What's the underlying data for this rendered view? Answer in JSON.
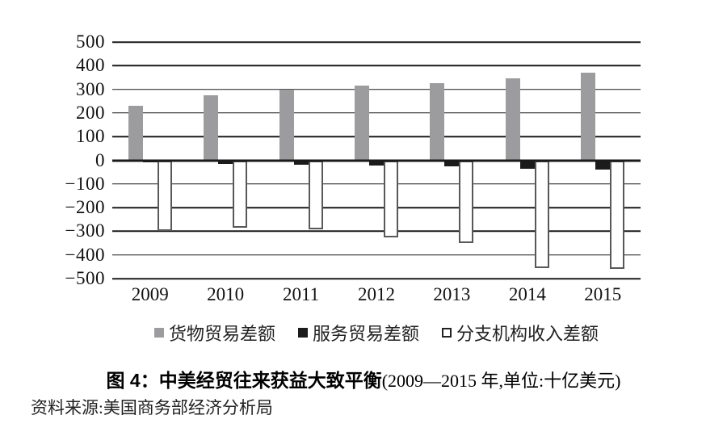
{
  "figure": {
    "caption_label": "图 4：",
    "caption_title": "中美经贸往来获益大致平衡",
    "caption_suffix": "(2009—2015 年,单位:十亿美元)",
    "source": "资料来源:美国商务部经济分析局"
  },
  "colors": {
    "goods_fill": "#9c9c9e",
    "services_fill": "#1b1b1b",
    "branch_fill": "#ffffff",
    "branch_border": "#58585a",
    "grid": "#1a1a1a"
  },
  "chart_data": {
    "type": "bar",
    "title": "图 4：中美经贸往来获益大致平衡(2009—2015 年,单位:十亿美元)",
    "xlabel": "",
    "ylabel": "",
    "unit": "十亿美元",
    "categories": [
      "2009",
      "2010",
      "2011",
      "2012",
      "2013",
      "2014",
      "2015"
    ],
    "series": [
      {
        "name": "货物贸易差额",
        "color_key": "goods",
        "values": [
          230,
          275,
          300,
          315,
          325,
          345,
          370
        ]
      },
      {
        "name": "服务贸易差额",
        "color_key": "services",
        "values": [
          -10,
          -15,
          -20,
          -23,
          -27,
          -35,
          -38
        ]
      },
      {
        "name": "分支机构收入差额",
        "color_key": "branch",
        "values": [
          -298,
          -286,
          -291,
          -325,
          -350,
          -455,
          -459
        ]
      }
    ],
    "ylim": [
      -500,
      500
    ],
    "ytick_interval": 100,
    "ytick_labels": [
      "500",
      "400",
      "300",
      "200",
      "100",
      "0",
      "−100",
      "−200",
      "−300",
      "−400",
      "−500"
    ],
    "grid": true,
    "legend_position": "bottom"
  }
}
